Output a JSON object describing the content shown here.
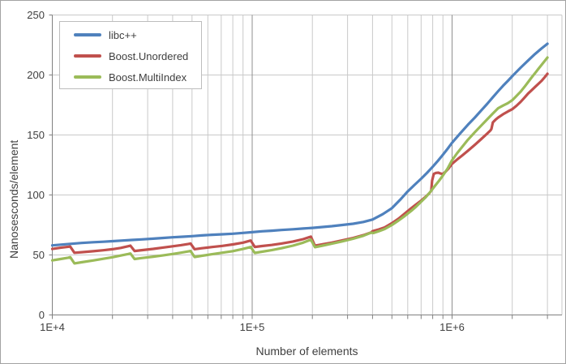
{
  "chart_data": {
    "type": "line",
    "title": "",
    "xlabel": "Number of elements",
    "ylabel": "Nanosesconds/element",
    "legend_position": "top-left",
    "grid": true,
    "x_axis": {
      "scale": "log",
      "min": 10000,
      "axis_max": 3550000,
      "label_ticks": [
        {
          "value": 10000,
          "label": "1E+4"
        },
        {
          "value": 100000,
          "label": "1E+5"
        },
        {
          "value": 1000000,
          "label": "1E+6"
        }
      ],
      "minor_multiples": [
        2,
        3,
        4,
        5,
        6,
        7,
        8,
        9
      ]
    },
    "y_axis": {
      "min": 0,
      "max": 250,
      "step": 50,
      "tick_labels": [
        "0",
        "50",
        "100",
        "150",
        "200",
        "250"
      ]
    },
    "colors": {
      "grid_minor": "#c9c9c9",
      "grid_major": "#8f8f8f",
      "axis": "#808080",
      "text": "#3f3f3f",
      "plot_border": "#c9c9c9",
      "legend_border": "#bdbdbd",
      "frame_border": "#a3a3a3"
    },
    "series": [
      {
        "name": "libc++",
        "color": "#4F81BD",
        "points": [
          [
            10000,
            58
          ],
          [
            11000,
            58.6
          ],
          [
            12500,
            59.3
          ],
          [
            14000,
            60
          ],
          [
            16000,
            60.6
          ],
          [
            18000,
            61
          ],
          [
            20000,
            61.5
          ],
          [
            22500,
            62
          ],
          [
            25000,
            62.5
          ],
          [
            28000,
            63
          ],
          [
            32000,
            63.6
          ],
          [
            36000,
            64.2
          ],
          [
            40000,
            64.7
          ],
          [
            45000,
            65.2
          ],
          [
            50000,
            65.7
          ],
          [
            56000,
            66.3
          ],
          [
            63000,
            66.8
          ],
          [
            71000,
            67.2
          ],
          [
            80000,
            67.7
          ],
          [
            90000,
            68.4
          ],
          [
            100000,
            69
          ],
          [
            112000,
            69.7
          ],
          [
            125000,
            70.2
          ],
          [
            140000,
            70.8
          ],
          [
            160000,
            71.4
          ],
          [
            180000,
            72
          ],
          [
            200000,
            72.6
          ],
          [
            225000,
            73.3
          ],
          [
            250000,
            74
          ],
          [
            280000,
            74.9
          ],
          [
            320000,
            76
          ],
          [
            360000,
            77.5
          ],
          [
            400000,
            79.5
          ],
          [
            450000,
            84
          ],
          [
            500000,
            89
          ],
          [
            550000,
            96
          ],
          [
            600000,
            103
          ],
          [
            650000,
            108.5
          ],
          [
            700000,
            113.5
          ],
          [
            750000,
            118.5
          ],
          [
            800000,
            123.5
          ],
          [
            850000,
            128.5
          ],
          [
            900000,
            133.5
          ],
          [
            950000,
            138.5
          ],
          [
            1000000,
            143.5
          ],
          [
            1100000,
            151.5
          ],
          [
            1200000,
            158.5
          ],
          [
            1300000,
            164.5
          ],
          [
            1400000,
            170.5
          ],
          [
            1500000,
            176
          ],
          [
            1600000,
            181.5
          ],
          [
            1700000,
            186.5
          ],
          [
            1800000,
            191
          ],
          [
            1900000,
            195
          ],
          [
            2000000,
            199
          ],
          [
            2200000,
            206
          ],
          [
            2400000,
            212
          ],
          [
            2600000,
            217.5
          ],
          [
            2800000,
            222
          ],
          [
            3000000,
            226
          ]
        ]
      },
      {
        "name": "Boost.Unordered",
        "color": "#C0504D",
        "points": [
          [
            10000,
            55
          ],
          [
            11000,
            56
          ],
          [
            12000,
            56.8
          ],
          [
            12289,
            57
          ],
          [
            12900,
            51.8
          ],
          [
            14000,
            52.3
          ],
          [
            16000,
            53.1
          ],
          [
            18000,
            53.9
          ],
          [
            20000,
            54.8
          ],
          [
            22000,
            55.9
          ],
          [
            24000,
            57.3
          ],
          [
            24593,
            57.8
          ],
          [
            25800,
            53.3
          ],
          [
            28000,
            54
          ],
          [
            32000,
            55.1
          ],
          [
            36000,
            56.2
          ],
          [
            40000,
            57.2
          ],
          [
            44000,
            58.2
          ],
          [
            48000,
            59.2
          ],
          [
            49157,
            59.5
          ],
          [
            51500,
            54.8
          ],
          [
            56000,
            55.6
          ],
          [
            63000,
            56.6
          ],
          [
            71000,
            57.6
          ],
          [
            80000,
            58.8
          ],
          [
            90000,
            60.3
          ],
          [
            98317,
            62
          ],
          [
            103000,
            56.7
          ],
          [
            112000,
            57.4
          ],
          [
            125000,
            58.3
          ],
          [
            140000,
            59.5
          ],
          [
            160000,
            61.2
          ],
          [
            180000,
            63.2
          ],
          [
            196613,
            65.3
          ],
          [
            206000,
            57.7
          ],
          [
            225000,
            58.9
          ],
          [
            250000,
            60.3
          ],
          [
            280000,
            62
          ],
          [
            320000,
            64.2
          ],
          [
            360000,
            66.5
          ],
          [
            393241,
            68.8
          ],
          [
            400000,
            69.8
          ],
          [
            430000,
            71.3
          ],
          [
            460000,
            73
          ],
          [
            500000,
            76.5
          ],
          [
            540000,
            80.3
          ],
          [
            580000,
            84.5
          ],
          [
            620000,
            88.5
          ],
          [
            660000,
            92
          ],
          [
            700000,
            95.3
          ],
          [
            740000,
            98.7
          ],
          [
            770000,
            101.5
          ],
          [
            786433,
            103.5
          ],
          [
            795000,
            112
          ],
          [
            810000,
            117.5
          ],
          [
            830000,
            118.4
          ],
          [
            855000,
            118.6
          ],
          [
            880000,
            117.8
          ],
          [
            900000,
            117.5
          ],
          [
            930000,
            119.5
          ],
          [
            960000,
            122
          ],
          [
            1000000,
            126
          ],
          [
            1060000,
            129.5
          ],
          [
            1120000,
            132.7
          ],
          [
            1200000,
            136.8
          ],
          [
            1300000,
            141.8
          ],
          [
            1400000,
            146.6
          ],
          [
            1500000,
            151.2
          ],
          [
            1560000,
            154
          ],
          [
            1572869,
            155
          ],
          [
            1600000,
            160.5
          ],
          [
            1650000,
            162.8
          ],
          [
            1700000,
            164.5
          ],
          [
            1800000,
            167.3
          ],
          [
            1900000,
            169.5
          ],
          [
            2000000,
            171.5
          ],
          [
            2100000,
            174.3
          ],
          [
            2200000,
            177.5
          ],
          [
            2300000,
            181
          ],
          [
            2400000,
            184.5
          ],
          [
            2500000,
            187.3
          ],
          [
            2600000,
            190
          ],
          [
            2700000,
            192.5
          ],
          [
            2800000,
            195
          ],
          [
            2900000,
            198
          ],
          [
            3000000,
            201
          ]
        ]
      },
      {
        "name": "Boost.MultiIndex",
        "color": "#9BBB59",
        "points": [
          [
            10000,
            45.5
          ],
          [
            11000,
            46.6
          ],
          [
            12000,
            47.7
          ],
          [
            12289,
            48.2
          ],
          [
            12900,
            43
          ],
          [
            14000,
            43.9
          ],
          [
            16000,
            45.4
          ],
          [
            18000,
            46.8
          ],
          [
            20000,
            48.1
          ],
          [
            22000,
            49.5
          ],
          [
            24000,
            50.8
          ],
          [
            24593,
            51.2
          ],
          [
            25800,
            46.6
          ],
          [
            28000,
            47.4
          ],
          [
            32000,
            48.6
          ],
          [
            36000,
            49.7
          ],
          [
            40000,
            50.8
          ],
          [
            44000,
            51.9
          ],
          [
            48000,
            53
          ],
          [
            49157,
            53.3
          ],
          [
            51500,
            48.3
          ],
          [
            56000,
            49.3
          ],
          [
            63000,
            50.6
          ],
          [
            71000,
            51.9
          ],
          [
            80000,
            53.2
          ],
          [
            90000,
            55
          ],
          [
            98317,
            56.6
          ],
          [
            103000,
            51.7
          ],
          [
            112000,
            52.7
          ],
          [
            125000,
            54
          ],
          [
            140000,
            55.6
          ],
          [
            160000,
            57.8
          ],
          [
            180000,
            60.3
          ],
          [
            196613,
            62.8
          ],
          [
            206000,
            56.5
          ],
          [
            225000,
            57.8
          ],
          [
            250000,
            59.4
          ],
          [
            280000,
            61.2
          ],
          [
            320000,
            63.5
          ],
          [
            360000,
            66
          ],
          [
            393241,
            68.6
          ],
          [
            405000,
            68.3
          ],
          [
            430000,
            69.8
          ],
          [
            460000,
            71.6
          ],
          [
            500000,
            75
          ],
          [
            540000,
            78.7
          ],
          [
            580000,
            82.5
          ],
          [
            620000,
            86.3
          ],
          [
            660000,
            90.2
          ],
          [
            700000,
            94.3
          ],
          [
            740000,
            98.3
          ],
          [
            780000,
            102.8
          ],
          [
            820000,
            107.5
          ],
          [
            860000,
            111.8
          ],
          [
            900000,
            116.2
          ],
          [
            950000,
            122
          ],
          [
            1000000,
            129
          ],
          [
            1060000,
            134.8
          ],
          [
            1120000,
            139.8
          ],
          [
            1200000,
            146
          ],
          [
            1300000,
            152.3
          ],
          [
            1400000,
            157.9
          ],
          [
            1500000,
            163.1
          ],
          [
            1600000,
            167.9
          ],
          [
            1700000,
            172.3
          ],
          [
            1800000,
            174.5
          ],
          [
            1900000,
            176.5
          ],
          [
            2000000,
            179
          ],
          [
            2100000,
            182.5
          ],
          [
            2200000,
            186
          ],
          [
            2300000,
            190
          ],
          [
            2400000,
            194
          ],
          [
            2500000,
            198
          ],
          [
            2600000,
            201.5
          ],
          [
            2700000,
            205
          ],
          [
            2800000,
            208.3
          ],
          [
            2900000,
            211.5
          ],
          [
            3000000,
            214.5
          ]
        ]
      }
    ]
  }
}
